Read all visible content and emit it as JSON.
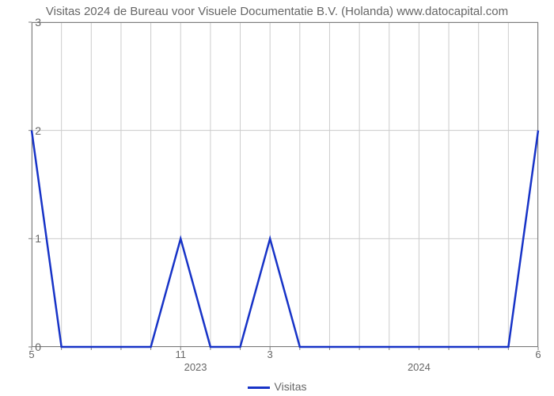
{
  "chart": {
    "type": "line",
    "title": "Visitas 2024 de Bureau voor Visuele Documentatie B.V. (Holanda) www.datocapital.com",
    "title_fontsize": 15,
    "title_color": "#666666",
    "background_color": "#ffffff",
    "plot_border_color": "#7f7f7f",
    "grid_color": "#cccccc",
    "line_color": "#1733c7",
    "line_width": 2.5,
    "axis_text_color": "#666666",
    "axis_fontsize": 14,
    "y": {
      "lim": [
        0,
        3
      ],
      "ticks": [
        0,
        1,
        2,
        3
      ]
    },
    "x": {
      "n_points": 18,
      "top_ticks": [
        {
          "i": 0,
          "label": "5"
        },
        {
          "i": 5,
          "label": "11"
        },
        {
          "i": 8,
          "label": "3"
        },
        {
          "i": 17,
          "label": "6"
        }
      ],
      "bottom_ticks": [
        {
          "i": 5.5,
          "label": "2023"
        },
        {
          "i": 13,
          "label": "2024"
        }
      ]
    },
    "series": {
      "name": "Visitas",
      "values": [
        2,
        0,
        0,
        0,
        0,
        1,
        0,
        0,
        1,
        0,
        0,
        0,
        0,
        0,
        0,
        0,
        0,
        2
      ]
    },
    "legend": {
      "label": "Visitas",
      "swatch_color": "#1733c7"
    }
  }
}
